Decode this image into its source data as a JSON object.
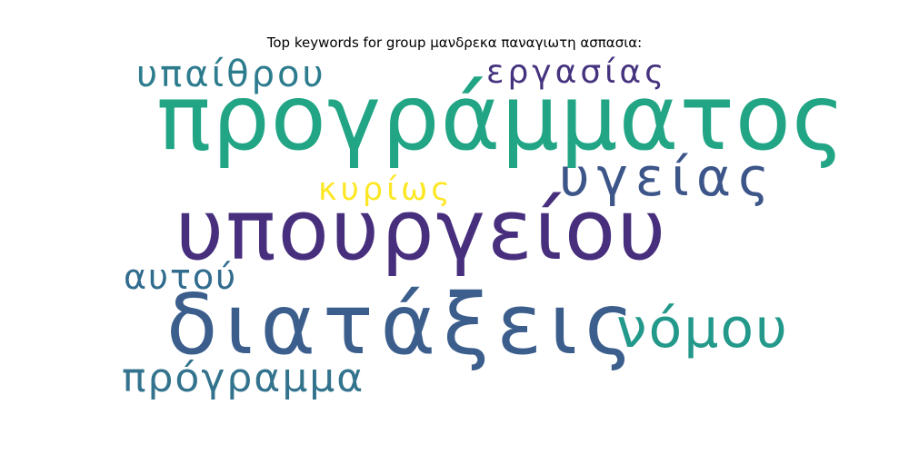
{
  "title": "Top keywords for group μανδρεκα παναγιωτη ασπασια:",
  "words": [
    {
      "text": "προγράμματος",
      "color": "#21a585"
    },
    {
      "text": "υπουργείου",
      "color": "#472f7d"
    },
    {
      "text": "διατάξεις",
      "color": "#3b5e8c"
    },
    {
      "text": "υγείας",
      "color": "#3d568a"
    },
    {
      "text": "νόμου",
      "color": "#23998b"
    },
    {
      "text": "πρόγραμμα",
      "color": "#33738d"
    },
    {
      "text": "υπαίθρου",
      "color": "#2d7c8e"
    },
    {
      "text": "εργασίας",
      "color": "#46337f"
    },
    {
      "text": "κυρίως",
      "color": "#fde725"
    },
    {
      "text": "αυτού",
      "color": "#316b8e"
    }
  ]
}
